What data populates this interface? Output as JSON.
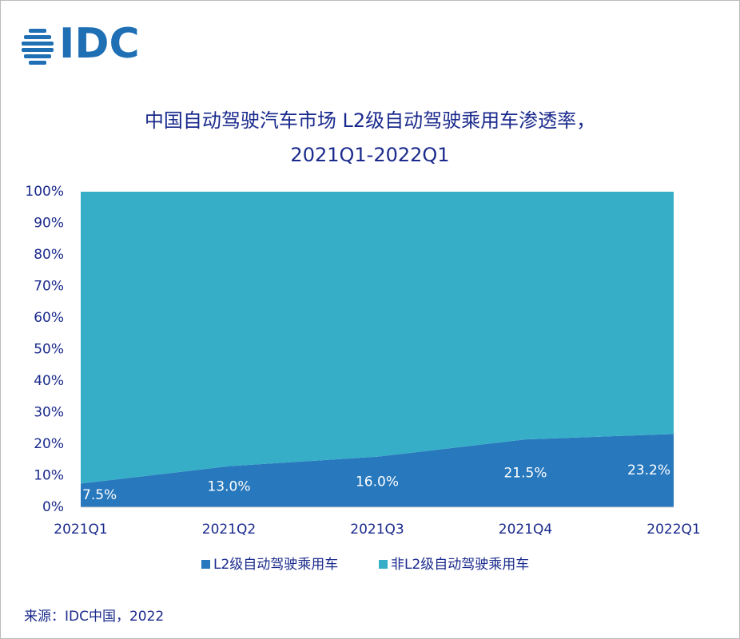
{
  "logo": "IDC",
  "chart_data": {
    "type": "stacked-area",
    "title": [
      "中国自动驾驶汽车市场 L2级自动驾驶乘用车渗透率，",
      "2021Q1-2022Q1"
    ],
    "categories": [
      "2021Q1",
      "2021Q2",
      "2021Q3",
      "2021Q4",
      "2022Q1"
    ],
    "series": [
      {
        "name": "L2级自动驾驶乘用车",
        "color": "#2878bd",
        "values": [
          7.5,
          13.0,
          16.0,
          21.5,
          23.2
        ],
        "value_labels": [
          "7.5%",
          "13.0%",
          "16.0%",
          "21.5%",
          "23.2%"
        ]
      },
      {
        "name": "非L2级自动驾驶乘用车",
        "color": "#36aec8",
        "values": [
          92.5,
          87.0,
          84.0,
          78.5,
          76.8
        ]
      }
    ],
    "ylim": [
      0,
      100
    ],
    "yticks": [
      {
        "value": 0,
        "label": "0%"
      },
      {
        "value": 10,
        "label": "10%"
      },
      {
        "value": 20,
        "label": "20%"
      },
      {
        "value": 30,
        "label": "30%"
      },
      {
        "value": 40,
        "label": "40%"
      },
      {
        "value": 50,
        "label": "50%"
      },
      {
        "value": 60,
        "label": "60%"
      },
      {
        "value": 70,
        "label": "70%"
      },
      {
        "value": 80,
        "label": "80%"
      },
      {
        "value": 90,
        "label": "90%"
      },
      {
        "value": 100,
        "label": "100%"
      }
    ],
    "legend": "bottom",
    "source": "来源：IDC中国，2022"
  }
}
